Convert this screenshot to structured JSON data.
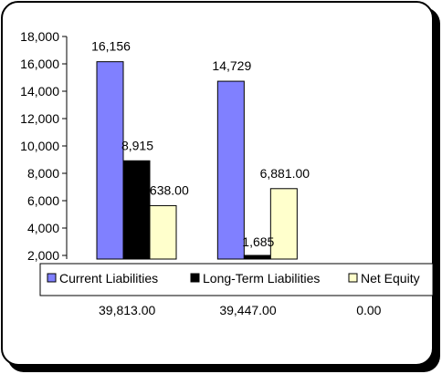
{
  "chart_data": {
    "type": "bar",
    "categories": [
      "39,813.00",
      "39,447.00",
      "0.00"
    ],
    "series": [
      {
        "name": "Current Liabilities",
        "values": [
          16156,
          14729,
          null
        ],
        "labels": [
          "16,156",
          "14,729",
          ""
        ],
        "color": "#8080ff"
      },
      {
        "name": "Long-Term Liabilities",
        "values": [
          8915,
          1685,
          null
        ],
        "labels": [
          "8,915",
          "1,685",
          ""
        ],
        "color": "#000000"
      },
      {
        "name": "Net Equity",
        "values": [
          5638,
          6881,
          null
        ],
        "labels": [
          "5,638.00",
          "6,881.00",
          ""
        ],
        "color": "#ffffcc"
      }
    ],
    "ylim": [
      2000,
      18000
    ],
    "yticks": [
      2000,
      4000,
      6000,
      8000,
      10000,
      12000,
      14000,
      16000,
      18000
    ],
    "ytick_labels": [
      "2,000",
      "4,000",
      "6,000",
      "8,000",
      "10,000",
      "12,000",
      "14,000",
      "16,000",
      "18,000"
    ],
    "legend_position": "bottom"
  }
}
